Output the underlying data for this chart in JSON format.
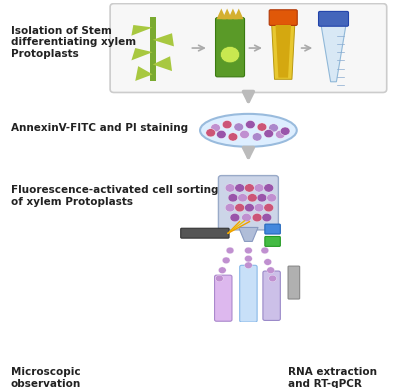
{
  "background_color": "#ffffff",
  "figsize": [
    4.0,
    3.88
  ],
  "dpi": 100,
  "labels": {
    "step1": "Isolation of Stem\ndifferentiating xylem\nProtoplasts",
    "step2": "AnnexinV-FITC and PI staining",
    "step3": "Fluorescence-activated cell sorting\nof xylem Protoplasts",
    "step4a": "Microscopic\nobservation",
    "step4b": "RNA extraction\nand RT-qPCR"
  },
  "label_fontsize": 7.5,
  "arrow_color": "#bbbbbb"
}
